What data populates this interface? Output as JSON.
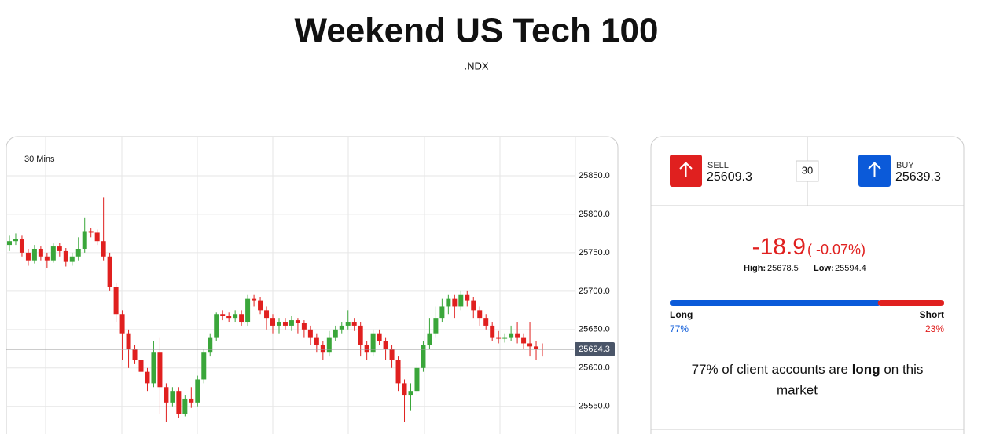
{
  "header": {
    "title": "Weekend US Tech 100",
    "symbol": ".NDX"
  },
  "chart_data": {
    "type": "candlestick",
    "interval": "30 Mins",
    "open": [
      25760,
      25765,
      25768,
      25750,
      25740,
      25755,
      25745,
      25740,
      25758,
      25752,
      25738,
      25745,
      25755,
      25778,
      25776,
      25765,
      25745,
      25705,
      25670,
      25645,
      25625,
      25610,
      25595,
      25580,
      25620,
      25575,
      25555,
      25570,
      25540,
      25560,
      25555,
      25585,
      25620,
      25640,
      25670,
      25668,
      25665,
      25670,
      25660,
      25690,
      25688,
      25675,
      25665,
      25655,
      25660,
      25655,
      25662,
      25658,
      25650,
      25640,
      25630,
      25620,
      25640,
      25650,
      25655,
      25660,
      25655,
      25630,
      25620,
      25645,
      25635,
      25625,
      25610,
      25580,
      25565,
      25570,
      25600,
      25630,
      25645,
      25665,
      25680,
      25690,
      25680,
      25695,
      25688,
      25675,
      25665,
      25655,
      25640,
      25638,
      25640,
      25645,
      25640,
      25632,
      25628,
      25625
    ],
    "high": [
      25772,
      25775,
      25772,
      25755,
      25760,
      25758,
      25750,
      25762,
      25763,
      25756,
      25750,
      25770,
      25795,
      25782,
      25780,
      25822,
      25750,
      25710,
      25675,
      25650,
      25630,
      25615,
      25600,
      25635,
      25640,
      25580,
      25575,
      25575,
      25565,
      25575,
      25590,
      25625,
      25645,
      25672,
      25675,
      25672,
      25675,
      25675,
      25695,
      25695,
      25692,
      25680,
      25670,
      25665,
      25665,
      25668,
      25665,
      25662,
      25655,
      25645,
      25635,
      25648,
      25655,
      25660,
      25675,
      25665,
      25660,
      25635,
      25650,
      25650,
      25640,
      25630,
      25615,
      25585,
      25580,
      25605,
      25635,
      25665,
      25680,
      25690,
      25695,
      25695,
      25700,
      25700,
      25692,
      25680,
      25670,
      25660,
      25648,
      25645,
      25655,
      25660,
      25645,
      25660,
      25635,
      25632
    ],
    "low": [
      25752,
      25760,
      25745,
      25733,
      25736,
      25740,
      25730,
      25737,
      25745,
      25732,
      25733,
      25740,
      25750,
      25770,
      25760,
      25740,
      25700,
      25660,
      25610,
      25600,
      25605,
      25585,
      25570,
      25575,
      25540,
      25530,
      25550,
      25535,
      25537,
      25548,
      25550,
      25580,
      25615,
      25635,
      25662,
      25660,
      25660,
      25655,
      25655,
      25680,
      25670,
      25650,
      25645,
      25645,
      25650,
      25648,
      25645,
      25640,
      25630,
      25620,
      25610,
      25615,
      25635,
      25645,
      25650,
      25648,
      25615,
      25610,
      25615,
      25630,
      25610,
      25600,
      25570,
      25530,
      25545,
      25565,
      25595,
      25625,
      25640,
      25660,
      25670,
      25665,
      25675,
      25680,
      25665,
      25655,
      25650,
      25635,
      25632,
      25633,
      25635,
      25632,
      25625,
      25615,
      25610,
      25615
    ],
    "close": [
      25765,
      25768,
      25750,
      25740,
      25755,
      25745,
      25740,
      25758,
      25752,
      25738,
      25745,
      25755,
      25778,
      25776,
      25765,
      25745,
      25705,
      25670,
      25645,
      25625,
      25610,
      25595,
      25580,
      25620,
      25575,
      25555,
      25570,
      25540,
      25560,
      25555,
      25585,
      25620,
      25640,
      25670,
      25668,
      25665,
      25670,
      25660,
      25690,
      25688,
      25675,
      25665,
      25655,
      25660,
      25655,
      25662,
      25658,
      25650,
      25640,
      25630,
      25620,
      25640,
      25650,
      25655,
      25660,
      25655,
      25630,
      25620,
      25645,
      25635,
      25625,
      25610,
      25580,
      25565,
      25570,
      25600,
      25630,
      25645,
      25665,
      25680,
      25690,
      25680,
      25695,
      25688,
      25675,
      25665,
      25655,
      25640,
      25638,
      25640,
      25645,
      25640,
      25632,
      25628,
      25625,
      25624.3
    ],
    "up_color": "#3aa63a",
    "down_color": "#e0201f",
    "ylim": [
      25514,
      25900
    ],
    "yticks": [
      {
        "value": 25550,
        "label": "25550.0"
      },
      {
        "value": 25600,
        "label": "25600.0"
      },
      {
        "value": 25650,
        "label": "25650.0"
      },
      {
        "value": 25700,
        "label": "25700.0"
      },
      {
        "value": 25750,
        "label": "25750.0"
      },
      {
        "value": 25800,
        "label": "25800.0"
      },
      {
        "value": 25850,
        "label": "25850.0"
      }
    ],
    "grid": true,
    "last_price": 25624.3
  },
  "panel": {
    "sell_label": "SELL",
    "sell": 25609.3,
    "spread": 30,
    "buy_label": "BUY",
    "buy": 25639.3,
    "change": -18.9,
    "change_pct": "( -0.07%)",
    "high_label": "High:",
    "high": 25678.5,
    "low_label": "Low:",
    "low": 25594.4,
    "long_label": "Long",
    "short_label": "Short",
    "long": 77,
    "short": 23,
    "value_labels": [
      "77%",
      "23%"
    ],
    "long_color": "#0b5ad9",
    "short_color": "#e0201f",
    "sentence": [
      "77% of client accounts are",
      "long",
      "on this",
      "market"
    ]
  }
}
